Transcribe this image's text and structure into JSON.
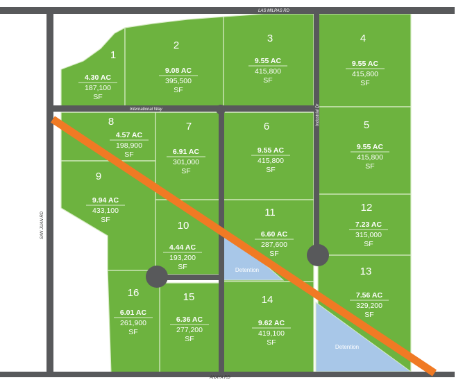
{
  "colors": {
    "lot": "#6db33f",
    "lot_border": "#d9ecc7",
    "road": "#58595b",
    "detention": "#a8c7e8",
    "pipeline": "#f07a24"
  },
  "roads": {
    "north": "LAS MILPAS RD",
    "south": "ANAYA RD",
    "west": "SAN JUAN RD",
    "international": "International Way",
    "industrial": "Industrial Dr"
  },
  "detention_label": "Detention",
  "lots": [
    {
      "id": "1",
      "acres": "4.30 AC",
      "sf": "187,100",
      "unit": "SF"
    },
    {
      "id": "2",
      "acres": "9.08 AC",
      "sf": "395,500",
      "unit": "SF"
    },
    {
      "id": "3",
      "acres": "9.55 AC",
      "sf": "415,800",
      "unit": "SF"
    },
    {
      "id": "4",
      "acres": "9.55 AC",
      "sf": "415,800",
      "unit": "SF"
    },
    {
      "id": "5",
      "acres": "9.55 AC",
      "sf": "415,800",
      "unit": "SF"
    },
    {
      "id": "6",
      "acres": "9.55 AC",
      "sf": "415,800",
      "unit": "SF"
    },
    {
      "id": "7",
      "acres": "6.91 AC",
      "sf": "301,000",
      "unit": "SF"
    },
    {
      "id": "8",
      "acres": "4.57 AC",
      "sf": "198,900",
      "unit": "SF"
    },
    {
      "id": "9",
      "acres": "9.94 AC",
      "sf": "433,100",
      "unit": "SF"
    },
    {
      "id": "10",
      "acres": "4.44 AC",
      "sf": "193,200",
      "unit": "SF"
    },
    {
      "id": "11",
      "acres": "6.60 AC",
      "sf": "287,600",
      "unit": "SF"
    },
    {
      "id": "12",
      "acres": "7.23 AC",
      "sf": "315,000",
      "unit": "SF"
    },
    {
      "id": "13",
      "acres": "7.56 AC",
      "sf": "329,200",
      "unit": "SF"
    },
    {
      "id": "14",
      "acres": "9.62 AC",
      "sf": "419,100",
      "unit": "SF"
    },
    {
      "id": "15",
      "acres": "6.36 AC",
      "sf": "277,200",
      "unit": "SF"
    },
    {
      "id": "16",
      "acres": "6.01 AC",
      "sf": "261,900",
      "unit": "SF"
    }
  ]
}
